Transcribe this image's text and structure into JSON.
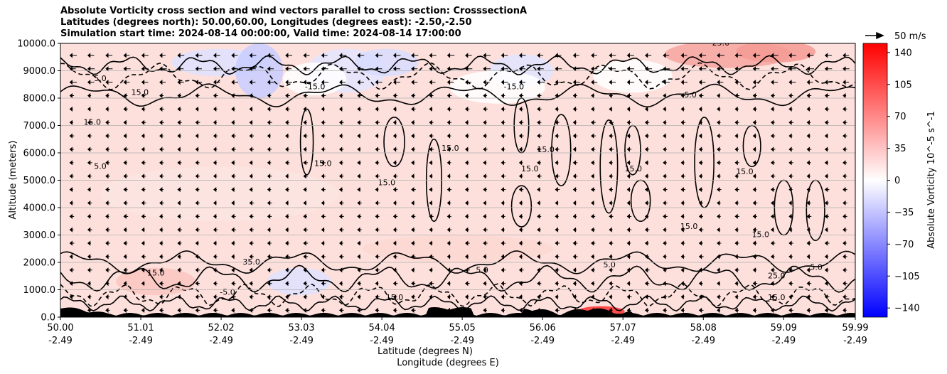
{
  "title_lines": [
    "Absolute Vorticity cross section and wind vectors parallel to cross section: CrosssectionA",
    "Latitudes (degrees north): 50.00,60.00, Longitudes (degrees east): -2.50,-2.50",
    "Simulation start time: 2024-08-14 00:00:00, Valid time: 2024-08-14 17:00:00"
  ],
  "chart_data": {
    "type": "heatmap",
    "ylabel": "Altitude (meters)",
    "xlabel_lines": [
      "Latitude (degrees N)",
      "Longitude (degrees E)"
    ],
    "ylim": [
      0,
      10000
    ],
    "xlim": [
      50.0,
      59.99
    ],
    "y_ticks": [
      0,
      1000,
      2000,
      3000,
      4000,
      5000,
      6000,
      7000,
      8000,
      9000,
      10000
    ],
    "y_tick_labels": [
      "0.0",
      "1000.0",
      "2000.0",
      "3000.0",
      "4000.0",
      "5000.0",
      "6000.0",
      "7000.0",
      "8000.0",
      "9000.0",
      "10000.0"
    ],
    "x_ticks": [
      50.0,
      51.01,
      52.02,
      53.03,
      54.04,
      55.05,
      56.06,
      57.07,
      58.08,
      59.09,
      59.99
    ],
    "x_tick_lat_labels": [
      "50.00",
      "51.01",
      "52.02",
      "53.03",
      "54.04",
      "55.05",
      "56.06",
      "57.07",
      "58.08",
      "59.09",
      "59.99"
    ],
    "x_tick_lon_labels": [
      "-2.49",
      "-2.49",
      "-2.49",
      "-2.49",
      "-2.49",
      "-2.49",
      "-2.49",
      "-2.49",
      "-2.49",
      "-2.49",
      "-2.49"
    ],
    "grid": "horizontal",
    "colorbar": {
      "label": "Absolute Vorticity 10^-5 s^-1",
      "range": [
        -150,
        150
      ],
      "ticks": [
        140,
        105,
        70,
        35,
        0,
        -35,
        -70,
        -105,
        -140
      ],
      "tick_labels": [
        "140",
        "105",
        "70",
        "35",
        "0",
        "−35",
        "−70",
        "−105",
        "−140"
      ],
      "colors": {
        "high": "#ff0000",
        "mid": "#ffffff",
        "low": "#0000ff"
      }
    },
    "quiver_key": {
      "label": "50 m/s",
      "speed": 50
    },
    "contour_labels": [
      "15.0",
      "5.0",
      "25.0",
      "35.0",
      "-5.0",
      "-15.0",
      "6.0",
      "15.0",
      "5.0",
      "15.0",
      "5.0",
      "15.0",
      "5.0"
    ],
    "contour_label_sites": [
      {
        "lat": 54.9,
        "alt": 6150,
        "text": "15.0"
      },
      {
        "lat": 53.3,
        "alt": 5600,
        "text": "15.0"
      },
      {
        "lat": 54.1,
        "alt": 4900,
        "text": "15.0"
      },
      {
        "lat": 55.9,
        "alt": 5400,
        "text": "15.0"
      },
      {
        "lat": 56.1,
        "alt": 6100,
        "text": "15.0"
      },
      {
        "lat": 50.5,
        "alt": 5500,
        "text": "5.0"
      },
      {
        "lat": 50.4,
        "alt": 7100,
        "text": "15.0"
      },
      {
        "lat": 57.2,
        "alt": 5400,
        "text": "15.0"
      },
      {
        "lat": 58.6,
        "alt": 5300,
        "text": "15.0"
      },
      {
        "lat": 57.9,
        "alt": 3300,
        "text": "15.0"
      },
      {
        "lat": 58.8,
        "alt": 3000,
        "text": "15.0"
      },
      {
        "lat": 59.5,
        "alt": 1800,
        "text": "5.0"
      },
      {
        "lat": 59.0,
        "alt": 1500,
        "text": "25.0"
      },
      {
        "lat": 59.0,
        "alt": 700,
        "text": "15.0"
      },
      {
        "lat": 51.2,
        "alt": 1600,
        "text": "15.0"
      },
      {
        "lat": 52.4,
        "alt": 2000,
        "text": "35.0"
      },
      {
        "lat": 54.2,
        "alt": 700,
        "text": "15.0"
      },
      {
        "lat": 51.0,
        "alt": 8200,
        "text": "15.0"
      },
      {
        "lat": 50.5,
        "alt": 8700,
        "text": "5.0"
      },
      {
        "lat": 53.2,
        "alt": 8400,
        "text": "-15.0"
      },
      {
        "lat": 55.7,
        "alt": 8400,
        "text": "-15.0"
      },
      {
        "lat": 57.9,
        "alt": 8100,
        "text": "-5.0"
      },
      {
        "lat": 58.3,
        "alt": 10000,
        "text": "25.0"
      },
      {
        "lat": 55.3,
        "alt": 1700,
        "text": "5.0"
      },
      {
        "lat": 56.9,
        "alt": 1900,
        "text": "5.0"
      },
      {
        "lat": 52.1,
        "alt": 900,
        "text": "-5.0"
      }
    ]
  }
}
